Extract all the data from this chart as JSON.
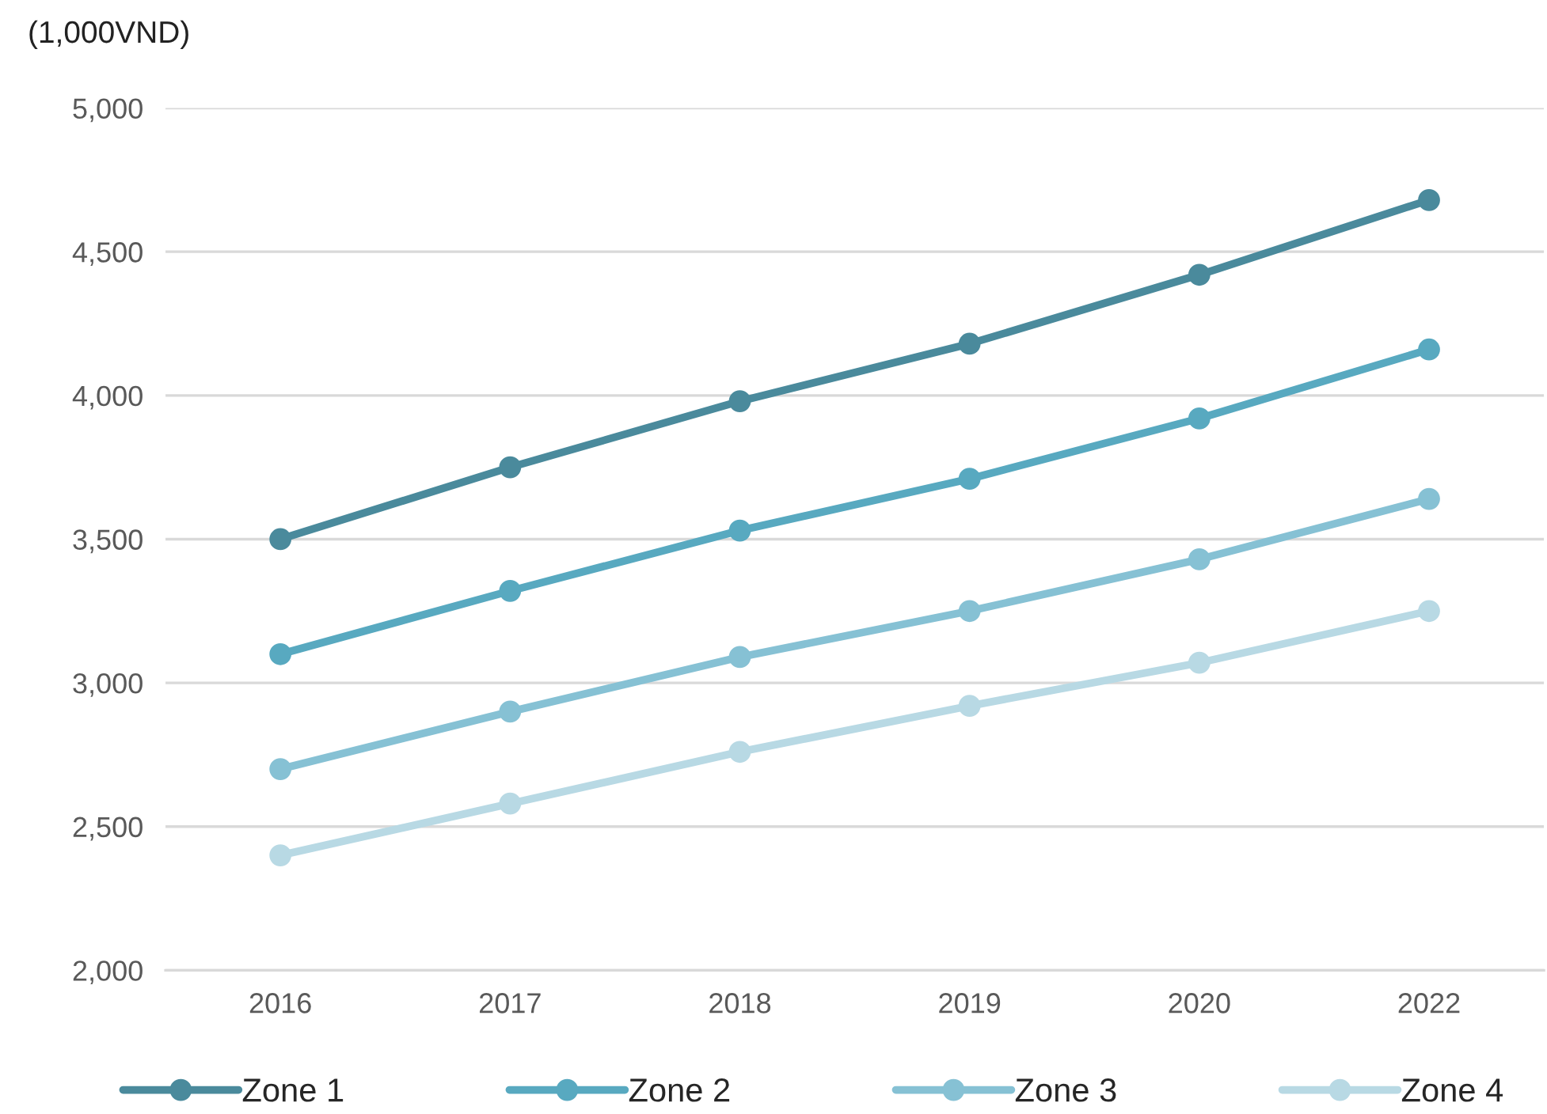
{
  "chart_data": {
    "type": "line",
    "ylabel": "(1,000VND)",
    "categories": [
      "2016",
      "2017",
      "2018",
      "2019",
      "2020",
      "2022"
    ],
    "series": [
      {
        "name": "Zone 1",
        "color": "#4a8a9c",
        "values": [
          3500,
          3750,
          3980,
          4180,
          4420,
          4680
        ]
      },
      {
        "name": "Zone 2",
        "color": "#58a9c0",
        "values": [
          3100,
          3320,
          3530,
          3710,
          3920,
          4160
        ]
      },
      {
        "name": "Zone 3",
        "color": "#86c1d4",
        "values": [
          2700,
          2900,
          3090,
          3250,
          3430,
          3640
        ]
      },
      {
        "name": "Zone 4",
        "color": "#b8d9e4",
        "values": [
          2400,
          2580,
          2760,
          2920,
          3070,
          3250
        ]
      }
    ],
    "ylim": [
      2000,
      5000
    ],
    "yticks": [
      {
        "value": 2000,
        "label": "2,000"
      },
      {
        "value": 2500,
        "label": "2,500"
      },
      {
        "value": 3000,
        "label": "3,000"
      },
      {
        "value": 3500,
        "label": "3,500"
      },
      {
        "value": 4000,
        "label": "4,000"
      },
      {
        "value": 4500,
        "label": "4,500"
      },
      {
        "value": 5000,
        "label": "5,000"
      }
    ],
    "grid": "y",
    "legend": "bottom",
    "marker": "circle",
    "line_style": "solid"
  }
}
